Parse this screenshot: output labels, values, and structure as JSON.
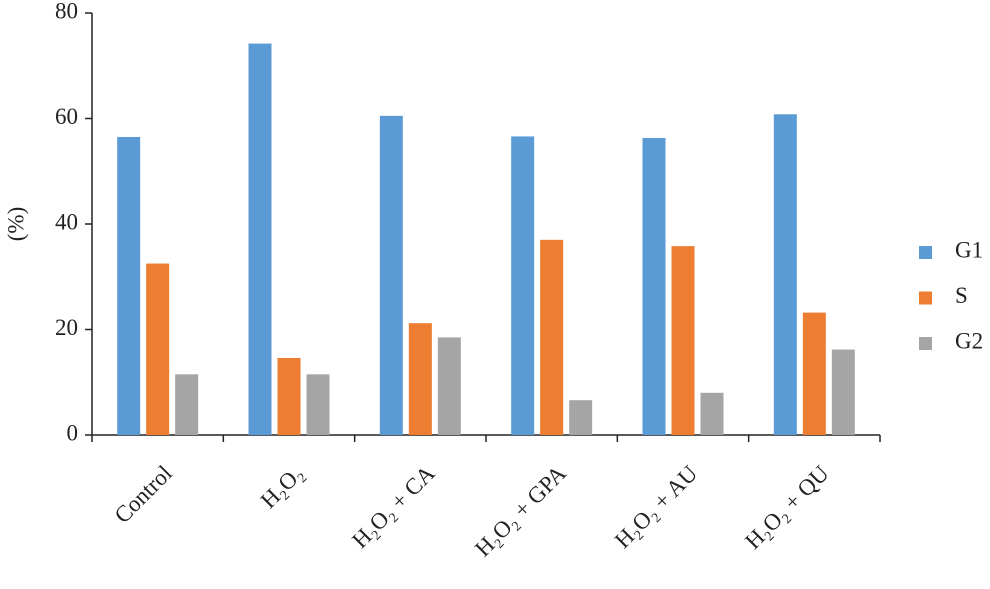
{
  "chart_data": {
    "type": "bar",
    "y_label": "(%)",
    "categories": [
      "Control",
      "H₂O₂",
      "H₂O₂ + CA",
      "H₂O₂ + GPA",
      "H₂O₂ + AU",
      "H₂O₂ + QU"
    ],
    "series": [
      {
        "name": "G1",
        "color": "#5b9bd5",
        "values": [
          56.5,
          74.2,
          60.5,
          56.6,
          56.3,
          60.8
        ]
      },
      {
        "name": "S",
        "color": "#ed7d31",
        "values": [
          32.5,
          14.6,
          21.2,
          37,
          35.8,
          23.2
        ]
      },
      {
        "name": "G2",
        "color": "#a5a5a5",
        "values": [
          11.5,
          11.5,
          18.5,
          6.6,
          8,
          16.2
        ]
      }
    ],
    "ylim": [
      0,
      80
    ],
    "yticks": [
      0,
      20,
      40,
      60,
      80
    ],
    "grid": false,
    "legend": "right"
  }
}
